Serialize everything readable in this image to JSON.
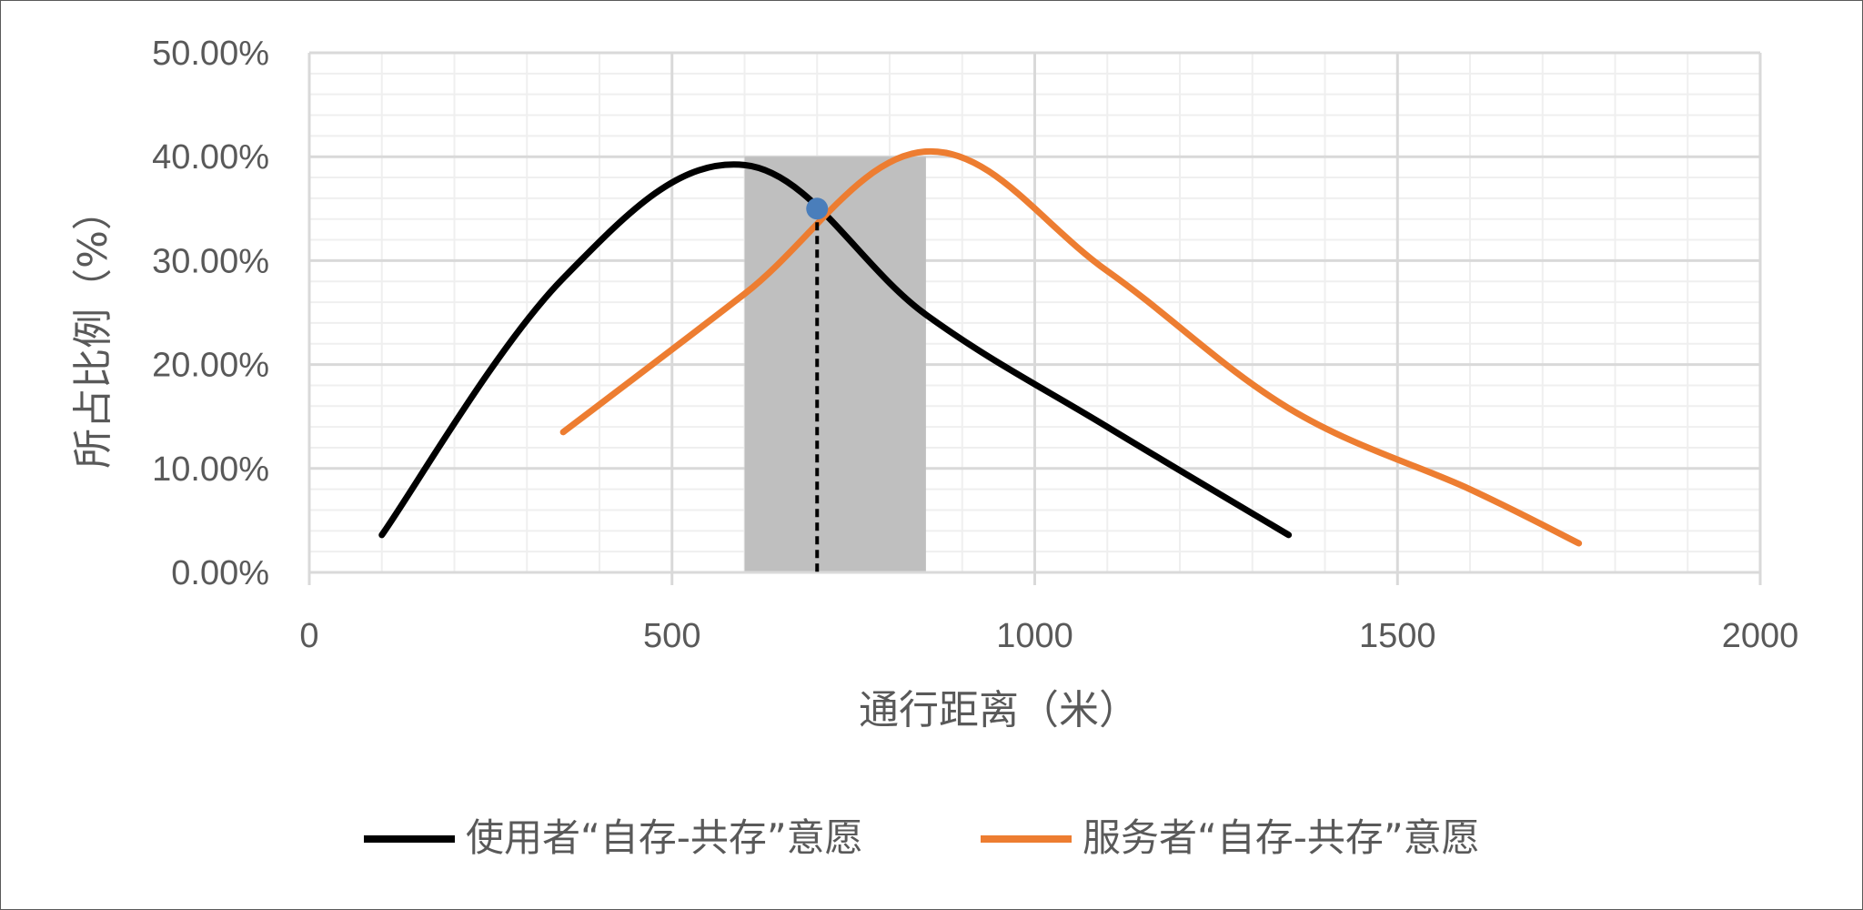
{
  "chart_data": {
    "type": "line",
    "title": "",
    "xlabel": "通行距离（米）",
    "ylabel": "所占比例（%）",
    "xlim": [
      0,
      2000
    ],
    "ylim": [
      0,
      0.5
    ],
    "x_ticks": [
      "0",
      "500",
      "1000",
      "1500",
      "2000"
    ],
    "x_tick_values": [
      0,
      500,
      1000,
      1500,
      2000
    ],
    "y_ticks": [
      "0.00%",
      "10.00%",
      "20.00%",
      "30.00%",
      "40.00%",
      "50.00%"
    ],
    "y_tick_values": [
      0,
      0.1,
      0.2,
      0.3,
      0.4,
      0.5
    ],
    "grid": true,
    "legend_position": "bottom",
    "series": [
      {
        "name": "使用者“自存-共存”意愿",
        "color": "#000000",
        "x": [
          100,
          350,
          600,
          850,
          1100,
          1350
        ],
        "values": [
          0.036,
          0.283,
          0.392,
          0.248,
          0.14,
          0.036
        ]
      },
      {
        "name": "服务者“自存-共存”意愿",
        "color": "#ED7D31",
        "x": [
          350,
          600,
          850,
          1100,
          1350,
          1600,
          1750
        ],
        "values": [
          0.135,
          0.268,
          0.405,
          0.29,
          0.158,
          0.08,
          0.028
        ]
      }
    ],
    "highlight_band": {
      "x_from": 600,
      "x_to": 850,
      "y_to": 0.4,
      "color": "#BFBFBF"
    },
    "intersection": {
      "x": 700,
      "y": 0.35,
      "color": "#4A7EBB"
    }
  }
}
